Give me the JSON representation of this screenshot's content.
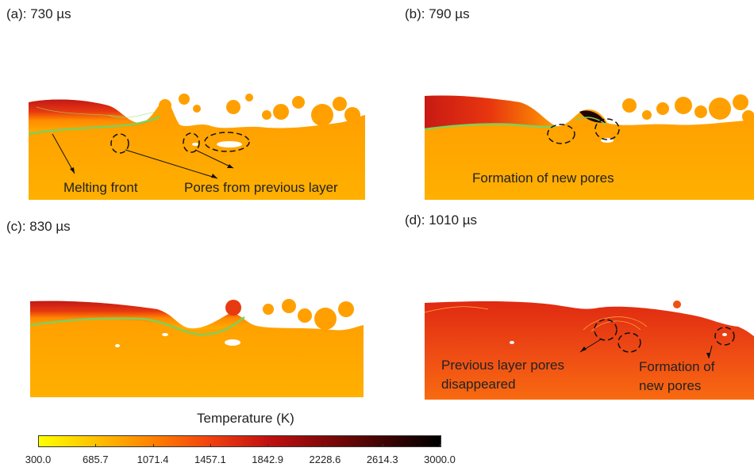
{
  "panels": [
    {
      "label": "(a): 730 µs",
      "annotations": [
        "Melting front",
        "Pores from previous layer"
      ]
    },
    {
      "label": "(b): 790 µs",
      "annotations": [
        "Formation of new pores"
      ]
    },
    {
      "label": "(c): 830 µs",
      "annotations": []
    },
    {
      "label": "(d): 1010 µs",
      "annotations": [
        "Previous layer pores",
        "disappeared",
        "Formation of",
        "new pores"
      ]
    }
  ],
  "colorbar": {
    "title": "Temperature (K)",
    "ticks": [
      "300.0",
      "685.7",
      "1071.4",
      "1457.1",
      "1842.9",
      "2228.6",
      "2614.3",
      "3000.0"
    ],
    "colors": [
      "#ffff00",
      "#ffc000",
      "#ff8000",
      "#f04010",
      "#c01010",
      "#800808",
      "#400404",
      "#000000"
    ]
  }
}
